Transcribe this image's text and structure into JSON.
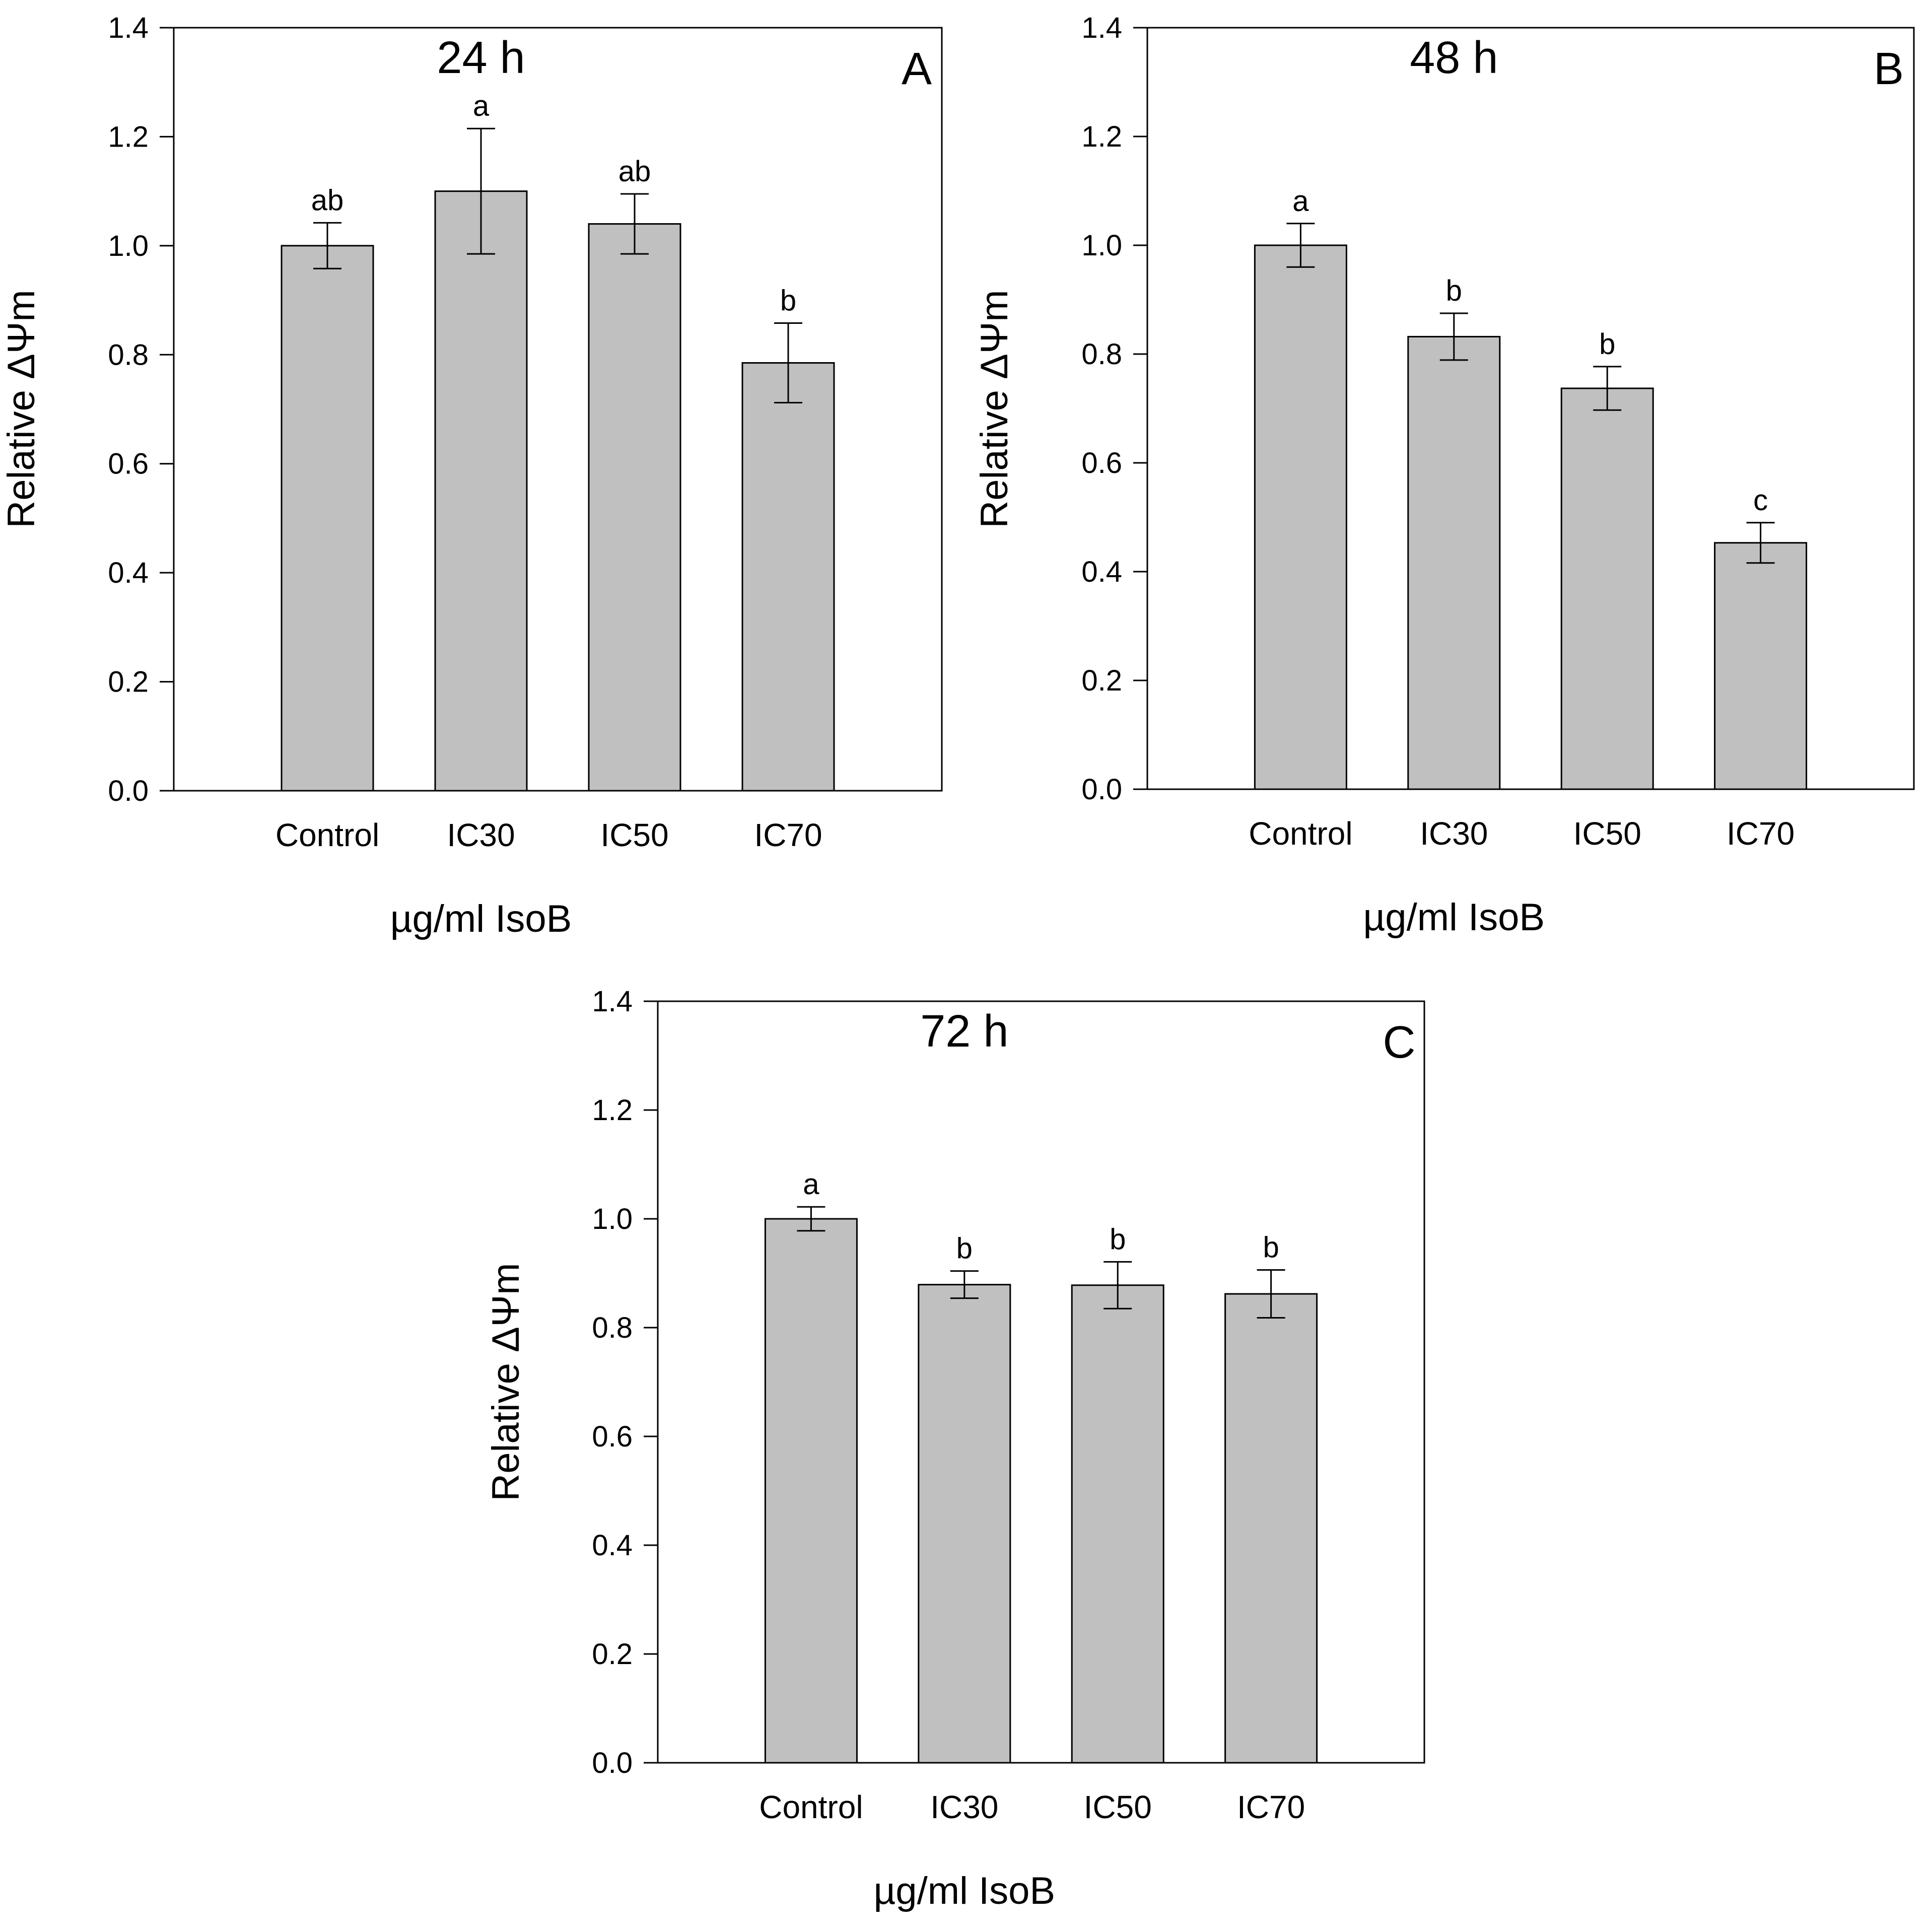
{
  "chart_data": [
    {
      "type": "bar",
      "panel_letter": "A",
      "title": "24 h",
      "xlabel": "µg/ml IsoB",
      "ylabel": "Relative ΔΨm",
      "ylim": [
        0,
        1.4
      ],
      "yticks": [
        0.0,
        0.2,
        0.4,
        0.6,
        0.8,
        1.0,
        1.2,
        1.4
      ],
      "ytick_labels": [
        "0.0",
        "0.2",
        "0.4",
        "0.6",
        "0.8",
        "1.0",
        "1.2",
        "1.4"
      ],
      "categories": [
        "Control",
        "IC30",
        "IC50",
        "IC70"
      ],
      "values": [
        1.0,
        1.1,
        1.04,
        0.785
      ],
      "errors": [
        0.042,
        0.115,
        0.055,
        0.073
      ],
      "significance": [
        "ab",
        "a",
        "ab",
        "b"
      ],
      "grid": false,
      "bar_color": "#c0c0c0"
    },
    {
      "type": "bar",
      "panel_letter": "B",
      "title": "48 h",
      "xlabel": "µg/ml IsoB",
      "ylabel": "Relative ΔΨm",
      "ylim": [
        0,
        1.4
      ],
      "yticks": [
        0.0,
        0.2,
        0.4,
        0.6,
        0.8,
        1.0,
        1.2,
        1.4
      ],
      "ytick_labels": [
        "0.0",
        "0.2",
        "0.4",
        "0.6",
        "0.8",
        "1.0",
        "1.2",
        "1.4"
      ],
      "categories": [
        "Control",
        "IC30",
        "IC50",
        "IC70"
      ],
      "values": [
        1.0,
        0.832,
        0.737,
        0.453
      ],
      "errors": [
        0.04,
        0.043,
        0.04,
        0.037
      ],
      "significance": [
        "a",
        "b",
        "b",
        "c"
      ],
      "grid": false,
      "bar_color": "#c0c0c0"
    },
    {
      "type": "bar",
      "panel_letter": "C",
      "title": "72 h",
      "xlabel": "µg/ml IsoB",
      "ylabel": "Relative ΔΨm",
      "ylim": [
        0,
        1.4
      ],
      "yticks": [
        0.0,
        0.2,
        0.4,
        0.6,
        0.8,
        1.0,
        1.2,
        1.4
      ],
      "ytick_labels": [
        "0.0",
        "0.2",
        "0.4",
        "0.6",
        "0.8",
        "1.0",
        "1.2",
        "1.4"
      ],
      "categories": [
        "Control",
        "IC30",
        "IC50",
        "IC70"
      ],
      "values": [
        1.0,
        0.879,
        0.878,
        0.862
      ],
      "errors": [
        0.022,
        0.025,
        0.043,
        0.044
      ],
      "significance": [
        "a",
        "b",
        "b",
        "b"
      ],
      "grid": false,
      "bar_color": "#c0c0c0"
    }
  ]
}
